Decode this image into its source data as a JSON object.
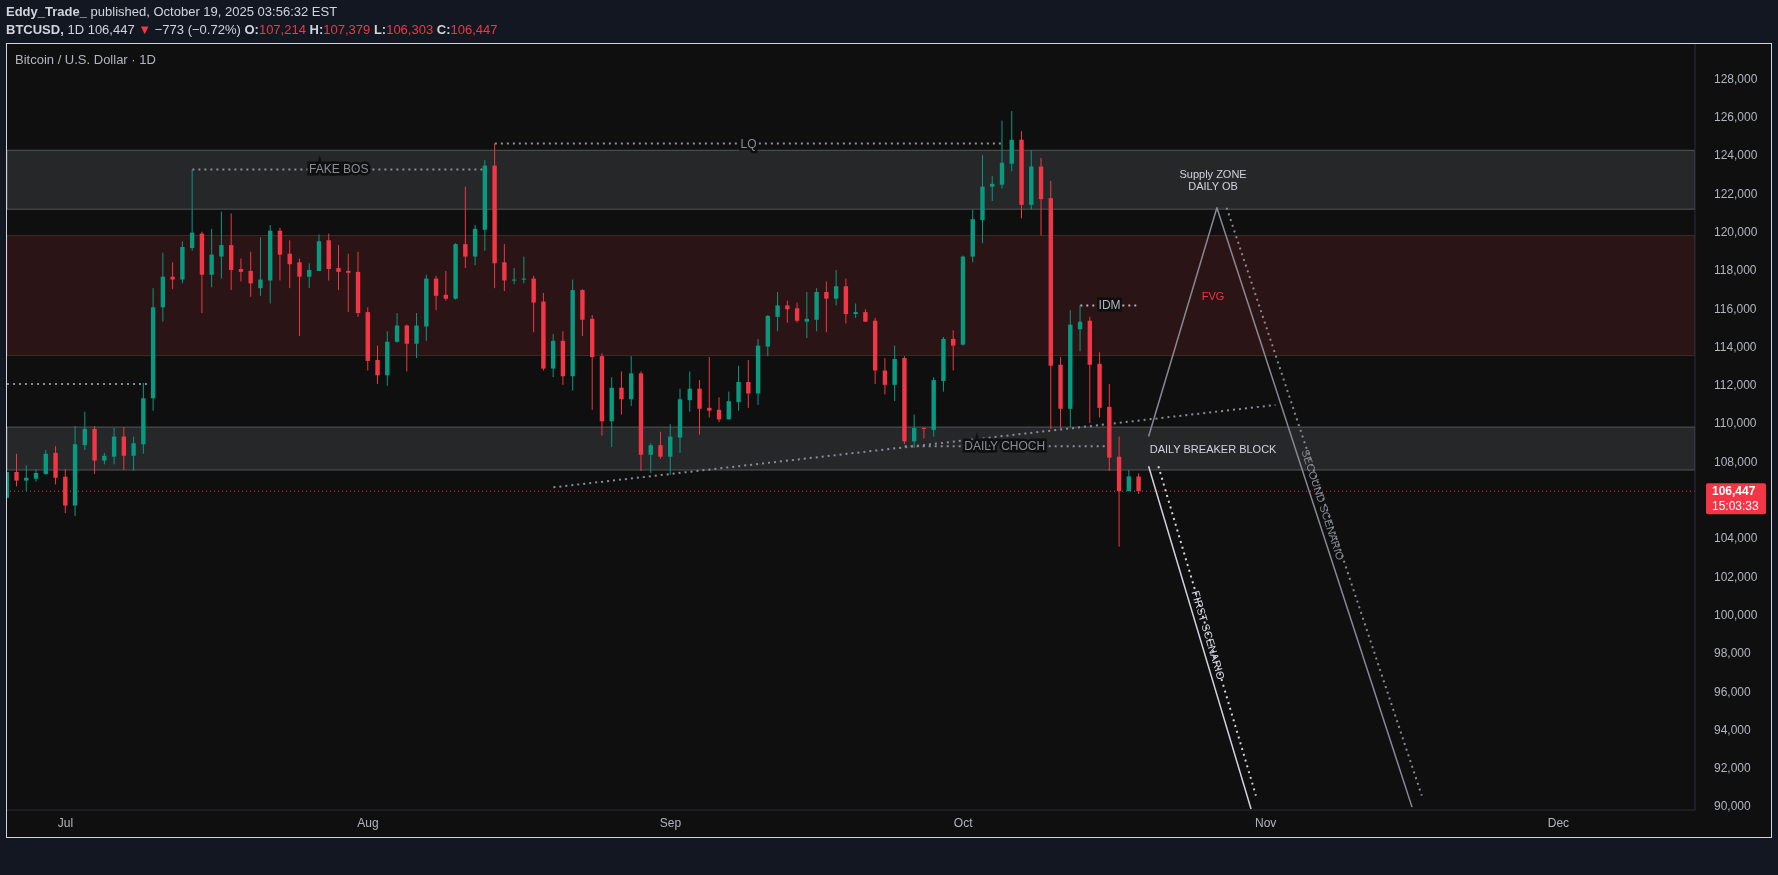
{
  "chart_data": {
    "type": "candlestick",
    "title": "Bitcoin / U.S. Dollar · 1D",
    "x": [
      "2025-06-25",
      "2025-06-26",
      "2025-06-27",
      "2025-06-28",
      "2025-06-29",
      "2025-06-30",
      "2025-07-01",
      "2025-07-02",
      "2025-07-03",
      "2025-07-04",
      "2025-07-05",
      "2025-07-06",
      "2025-07-07",
      "2025-07-08",
      "2025-07-09",
      "2025-07-10",
      "2025-07-11",
      "2025-07-12",
      "2025-07-13",
      "2025-07-14",
      "2025-07-15",
      "2025-07-16",
      "2025-07-17",
      "2025-07-18",
      "2025-07-19",
      "2025-07-20",
      "2025-07-21",
      "2025-07-22",
      "2025-07-23",
      "2025-07-24",
      "2025-07-25",
      "2025-07-26",
      "2025-07-27",
      "2025-07-28",
      "2025-07-29",
      "2025-07-30",
      "2025-07-31",
      "2025-08-01",
      "2025-08-02",
      "2025-08-03",
      "2025-08-04",
      "2025-08-05",
      "2025-08-06",
      "2025-08-07",
      "2025-08-08",
      "2025-08-09",
      "2025-08-10",
      "2025-08-11",
      "2025-08-12",
      "2025-08-13",
      "2025-08-14",
      "2025-08-15",
      "2025-08-16",
      "2025-08-17",
      "2025-08-18",
      "2025-08-19",
      "2025-08-20",
      "2025-08-21",
      "2025-08-22",
      "2025-08-23",
      "2025-08-24",
      "2025-08-25",
      "2025-08-26",
      "2025-08-27",
      "2025-08-28",
      "2025-08-29",
      "2025-08-30",
      "2025-08-31",
      "2025-09-01",
      "2025-09-02",
      "2025-09-03",
      "2025-09-04",
      "2025-09-05",
      "2025-09-06",
      "2025-09-07",
      "2025-09-08",
      "2025-09-09",
      "2025-09-10",
      "2025-09-11",
      "2025-09-12",
      "2025-09-13",
      "2025-09-14",
      "2025-09-15",
      "2025-09-16",
      "2025-09-17",
      "2025-09-18",
      "2025-09-19",
      "2025-09-20",
      "2025-09-21",
      "2025-09-22",
      "2025-09-23",
      "2025-09-24",
      "2025-09-25",
      "2025-09-26",
      "2025-09-27",
      "2025-09-28",
      "2025-09-29",
      "2025-09-30",
      "2025-10-01",
      "2025-10-02",
      "2025-10-03",
      "2025-10-04",
      "2025-10-05",
      "2025-10-06",
      "2025-10-07",
      "2025-10-08",
      "2025-10-09",
      "2025-10-10",
      "2025-10-11",
      "2025-10-12",
      "2025-10-13",
      "2025-10-14",
      "2025-10-15",
      "2025-10-16",
      "2025-10-17",
      "2025-10-18",
      "2025-10-19"
    ],
    "ohlc": [
      [
        106100,
        107450,
        106100,
        107450
      ],
      [
        107450,
        108400,
        106700,
        107000
      ],
      [
        107000,
        107800,
        106450,
        107150
      ],
      [
        107100,
        107600,
        106950,
        107400
      ],
      [
        107350,
        108600,
        107300,
        108400
      ],
      [
        108450,
        108800,
        106800,
        107150
      ],
      [
        107200,
        107600,
        105300,
        105700
      ],
      [
        105700,
        109850,
        105150,
        108900
      ],
      [
        108850,
        110600,
        108600,
        109700
      ],
      [
        109700,
        109850,
        107350,
        108050
      ],
      [
        108050,
        108450,
        107850,
        108300
      ],
      [
        108250,
        109750,
        107850,
        109300
      ],
      [
        109300,
        109800,
        107550,
        108300
      ],
      [
        108300,
        109300,
        107500,
        108950
      ],
      [
        108900,
        112100,
        108400,
        111300
      ],
      [
        111300,
        117050,
        110650,
        116050
      ],
      [
        116050,
        118900,
        115300,
        117650
      ],
      [
        117650,
        118400,
        117000,
        117500
      ],
      [
        117500,
        119500,
        117300,
        119200
      ],
      [
        119150,
        123250,
        119000,
        119950
      ],
      [
        119900,
        120000,
        115750,
        117750
      ],
      [
        117750,
        120150,
        117100,
        118800
      ],
      [
        118700,
        121050,
        117550,
        119300
      ],
      [
        119300,
        120950,
        116950,
        118000
      ],
      [
        118050,
        118600,
        117400,
        117900
      ],
      [
        117950,
        118950,
        116600,
        117300
      ],
      [
        117050,
        119700,
        116650,
        117500
      ],
      [
        117450,
        120350,
        116250,
        120050
      ],
      [
        120050,
        120200,
        117450,
        118800
      ],
      [
        118850,
        119550,
        117050,
        118300
      ],
      [
        118400,
        118600,
        114550,
        117650
      ],
      [
        117650,
        118350,
        117050,
        118000
      ],
      [
        117950,
        119850,
        117950,
        119500
      ],
      [
        119550,
        119900,
        117450,
        118050
      ],
      [
        118100,
        119300,
        116950,
        117900
      ],
      [
        117950,
        118850,
        115800,
        117850
      ],
      [
        117900,
        118950,
        115550,
        115750
      ],
      [
        115800,
        116050,
        112750,
        113250
      ],
      [
        113300,
        114050,
        112050,
        112500
      ],
      [
        112500,
        114800,
        111950,
        114250
      ],
      [
        114250,
        115750,
        114200,
        115100
      ],
      [
        115100,
        115150,
        112700,
        114150
      ],
      [
        114150,
        115750,
        113400,
        115100
      ],
      [
        115050,
        117750,
        114300,
        117550
      ],
      [
        117550,
        117700,
        115900,
        116650
      ],
      [
        116700,
        117950,
        116400,
        116500
      ],
      [
        116500,
        119400,
        116450,
        119350
      ],
      [
        119350,
        122350,
        118100,
        118700
      ],
      [
        118700,
        120350,
        118250,
        120150
      ],
      [
        120100,
        123750,
        119000,
        123450
      ],
      [
        123450,
        124600,
        117050,
        118350
      ],
      [
        118400,
        119350,
        116900,
        117450
      ],
      [
        117450,
        118100,
        117250,
        117500
      ],
      [
        117500,
        118700,
        117300,
        117550
      ],
      [
        117550,
        117700,
        114750,
        116300
      ],
      [
        116350,
        116800,
        112750,
        112850
      ],
      [
        112850,
        114650,
        112400,
        114300
      ],
      [
        114300,
        114800,
        112000,
        112450
      ],
      [
        112450,
        117500,
        111700,
        116950
      ],
      [
        116950,
        117000,
        114550,
        115400
      ],
      [
        115450,
        115650,
        110700,
        113450
      ],
      [
        113500,
        113650,
        109350,
        110100
      ],
      [
        110100,
        112400,
        108750,
        111850
      ],
      [
        111850,
        112700,
        110450,
        111250
      ],
      [
        111250,
        113500,
        110900,
        112600
      ],
      [
        112600,
        112700,
        107500,
        108350
      ],
      [
        108350,
        108950,
        107400,
        108850
      ],
      [
        108850,
        109550,
        108150,
        108250
      ],
      [
        108250,
        109950,
        107300,
        109300
      ],
      [
        109250,
        111800,
        108450,
        111250
      ],
      [
        111200,
        112700,
        110600,
        111800
      ],
      [
        111800,
        112250,
        109400,
        110750
      ],
      [
        110800,
        113450,
        110300,
        110650
      ],
      [
        110700,
        111350,
        110050,
        110200
      ],
      [
        110200,
        111650,
        110200,
        111150
      ],
      [
        111100,
        113000,
        110650,
        112150
      ],
      [
        112150,
        113300,
        110800,
        111550
      ],
      [
        111550,
        114400,
        110950,
        114050
      ],
      [
        114000,
        115650,
        113500,
        115600
      ],
      [
        115550,
        116850,
        114800,
        116150
      ],
      [
        116150,
        116400,
        115250,
        115950
      ],
      [
        116000,
        116300,
        115250,
        115350
      ],
      [
        115300,
        116850,
        114450,
        115450
      ],
      [
        115400,
        117050,
        114800,
        116850
      ],
      [
        116850,
        117400,
        114750,
        116500
      ],
      [
        116500,
        118000,
        116150,
        117150
      ],
      [
        117150,
        117550,
        115200,
        115700
      ],
      [
        115700,
        116250,
        115500,
        115800
      ],
      [
        115800,
        115950,
        115300,
        115300
      ],
      [
        115350,
        115500,
        112050,
        112750
      ],
      [
        112750,
        113400,
        111500,
        112000
      ],
      [
        112000,
        114050,
        111150,
        113350
      ],
      [
        113400,
        113500,
        108900,
        109050
      ],
      [
        109050,
        110450,
        108700,
        109750
      ],
      [
        109750,
        109800,
        109200,
        109700
      ],
      [
        109650,
        112400,
        109300,
        112250
      ],
      [
        112200,
        114500,
        111650,
        114400
      ],
      [
        114400,
        114850,
        112750,
        114050
      ],
      [
        114100,
        118750,
        114050,
        118700
      ],
      [
        118700,
        121150,
        118400,
        120650
      ],
      [
        120600,
        124000,
        119400,
        122350
      ],
      [
        122350,
        122900,
        121600,
        122500
      ],
      [
        122450,
        125800,
        122250,
        123600
      ],
      [
        123550,
        126300,
        123150,
        124800
      ],
      [
        124800,
        125250,
        120700,
        121400
      ],
      [
        121400,
        124250,
        121150,
        123400
      ],
      [
        123400,
        123850,
        119800,
        121700
      ],
      [
        121750,
        122650,
        109700,
        113000
      ],
      [
        113050,
        113450,
        109750,
        110750
      ],
      [
        110750,
        115900,
        109750,
        115150
      ],
      [
        114900,
        116150,
        113750,
        115300
      ],
      [
        115350,
        115550,
        110000,
        113050
      ],
      [
        113100,
        113700,
        110300,
        110800
      ],
      [
        110850,
        112050,
        107500,
        108200
      ],
      [
        108250,
        109300,
        103550,
        106450
      ],
      [
        106450,
        107550,
        106450,
        107220
      ],
      [
        107214,
        107379,
        106303,
        106447
      ]
    ],
    "colors": [
      "#089981",
      "#f23645",
      "#089981",
      "#089981",
      "#089981",
      "#f23645",
      "#f23645",
      "#089981",
      "#089981",
      "#f23645",
      "#089981",
      "#089981",
      "#f23645",
      "#089981",
      "#089981",
      "#089981",
      "#089981",
      "#f23645",
      "#089981",
      "#089981",
      "#f23645",
      "#089981",
      "#089981",
      "#f23645",
      "#f23645",
      "#f23645",
      "#089981",
      "#089981",
      "#f23645",
      "#f23645",
      "#f23645",
      "#089981",
      "#089981",
      "#f23645",
      "#f23645",
      "#f23645",
      "#f23645",
      "#f23645",
      "#f23645",
      "#089981",
      "#089981",
      "#f23645",
      "#089981",
      "#089981",
      "#f23645",
      "#f23645",
      "#089981",
      "#f23645",
      "#089981",
      "#089981",
      "#f23645",
      "#f23645",
      "#089981",
      "#089981",
      "#f23645",
      "#f23645",
      "#089981",
      "#f23645",
      "#089981",
      "#f23645",
      "#f23645",
      "#f23645",
      "#089981",
      "#f23645",
      "#089981",
      "#f23645",
      "#089981",
      "#f23645",
      "#089981",
      "#089981",
      "#089981",
      "#f23645",
      "#f23645",
      "#f23645",
      "#089981",
      "#089981",
      "#f23645",
      "#089981",
      "#089981",
      "#089981",
      "#f23645",
      "#f23645",
      "#089981",
      "#089981",
      "#f23645",
      "#089981",
      "#f23645",
      "#089981",
      "#f23645",
      "#f23645",
      "#f23645",
      "#089981",
      "#f23645",
      "#089981",
      "#f23645",
      "#089981",
      "#089981",
      "#f23645",
      "#089981",
      "#089981",
      "#089981",
      "#089981",
      "#089981",
      "#089981",
      "#f23645",
      "#089981",
      "#f23645",
      "#f23645",
      "#f23645",
      "#089981",
      "#089981",
      "#f23645",
      "#f23645",
      "#f23645",
      "#f23645",
      "#089981",
      "#f23645"
    ],
    "series": [
      {
        "type": "line",
        "x": [
          "2025-06-25",
          "2025-07-09T12:00"
        ],
        "values": [
          112050,
          112050
        ],
        "color": "#8a8d96",
        "line_style": "dotted"
      },
      {
        "type": "line",
        "name": "FAKE BOS",
        "x": [
          "2025-07-14",
          "2025-08-13"
        ],
        "values": [
          123250,
          123250
        ],
        "color": "#8a8d96",
        "line_style": "dotted"
      },
      {
        "type": "line",
        "name": "LQ",
        "x": [
          "2025-08-14",
          "2025-10-05"
        ],
        "values": [
          124600,
          124600
        ],
        "color": "#8a8d96",
        "line_style": "dotted"
      },
      {
        "type": "line",
        "x": [
          "2025-08-20",
          "2025-11-02"
        ],
        "values": [
          106650,
          110950
        ],
        "color": "#8a8d96",
        "line_style": "dotted"
      },
      {
        "type": "line",
        "name": "DAILY CHOCH",
        "x": [
          "2025-09-25",
          "2025-10-15T12:00"
        ],
        "values": [
          108800,
          108800
        ],
        "color": "#8a8d96",
        "line_style": "dotted"
      },
      {
        "type": "line",
        "name": "IDM",
        "x": [
          "2025-10-13",
          "2025-10-19"
        ],
        "values": [
          116150,
          116150
        ],
        "color": "#b2b5be",
        "line_style": "dotted"
      },
      {
        "type": "line",
        "name": "FIRST SCENARIO",
        "x": [
          "2025-10-20",
          "2025-10-30T12:00"
        ],
        "values": [
          107750,
          89850
        ],
        "color": "#d1d4dc",
        "line_style": "solid"
      },
      {
        "type": "line",
        "x": [
          "2025-10-21",
          "2025-10-31"
        ],
        "values": [
          107750,
          90550
        ],
        "color": "#d1d4dc",
        "line_style": "dotted"
      },
      {
        "type": "line",
        "name": "SECOUND SCENARIO",
        "x": [
          "2025-10-20",
          "2025-10-27",
          "2025-11-16"
        ],
        "values": [
          109300,
          121250,
          89950
        ],
        "color": "#868993",
        "line_style": "solid"
      },
      {
        "type": "line",
        "x": [
          "2025-10-28",
          "2025-11-17"
        ],
        "values": [
          121250,
          90550
        ],
        "color": "#868993",
        "line_style": "dotted"
      }
    ],
    "xlim": [
      "2025-06-25",
      "2025-12-15"
    ],
    "xticks": [
      {
        "value": "2025-07-01",
        "label": "Jul"
      },
      {
        "value": "2025-08-01",
        "label": "Aug"
      },
      {
        "value": "2025-09-01",
        "label": "Sep"
      },
      {
        "value": "2025-10-01",
        "label": "Oct"
      },
      {
        "value": "2025-11-01",
        "label": "Nov"
      },
      {
        "value": "2025-12-01",
        "label": "Dec"
      }
    ],
    "ylim": [
      89800,
      129800
    ],
    "yticks": [
      {
        "value": 90000,
        "label": "90,000"
      },
      {
        "value": 92000,
        "label": "92,000"
      },
      {
        "value": 94000,
        "label": "94,000"
      },
      {
        "value": 96000,
        "label": "96,000"
      },
      {
        "value": 98000,
        "label": "98,000"
      },
      {
        "value": 100000,
        "label": "100,000"
      },
      {
        "value": 102000,
        "label": "102,000"
      },
      {
        "value": 104000,
        "label": "104,000"
      },
      {
        "value": 108000,
        "label": "108,000"
      },
      {
        "value": 110000,
        "label": "110,000"
      },
      {
        "value": 112000,
        "label": "112,000"
      },
      {
        "value": 114000,
        "label": "114,000"
      },
      {
        "value": 116000,
        "label": "116,000"
      },
      {
        "value": 118000,
        "label": "118,000"
      },
      {
        "value": 120000,
        "label": "120,000"
      },
      {
        "value": 122000,
        "label": "122,000"
      },
      {
        "value": 124000,
        "label": "124,000"
      },
      {
        "value": 126000,
        "label": "126,000"
      },
      {
        "value": 128000,
        "label": "128,000"
      }
    ],
    "bands": [
      {
        "axis": "y",
        "from": 121170,
        "to": 124250,
        "label": "Supply ZONE\nDAILY OB",
        "color": "#d1d4dc"
      },
      {
        "axis": "y",
        "from": 113530,
        "to": 119800,
        "label": "FVG",
        "color": "#f23645"
      },
      {
        "axis": "y",
        "from": 107550,
        "to": 109800,
        "label": "DAILY BREAKER BLOCK",
        "color": "#d1d4dc"
      }
    ],
    "ref_lines": [
      {
        "axis": "y",
        "value": 106447,
        "label": "106,447\n15:03:33",
        "color": "#f23645",
        "line_style": "dotted"
      }
    ],
    "annotations": [
      "Eddy_Trade_ published, October 19, 2025 03:56:32 EST",
      "BTCUSD, 1D 106,447 ▼ −773 (−0.72%) O:107,214 H:107,379 L:106,303 C:106,447"
    ]
  }
}
